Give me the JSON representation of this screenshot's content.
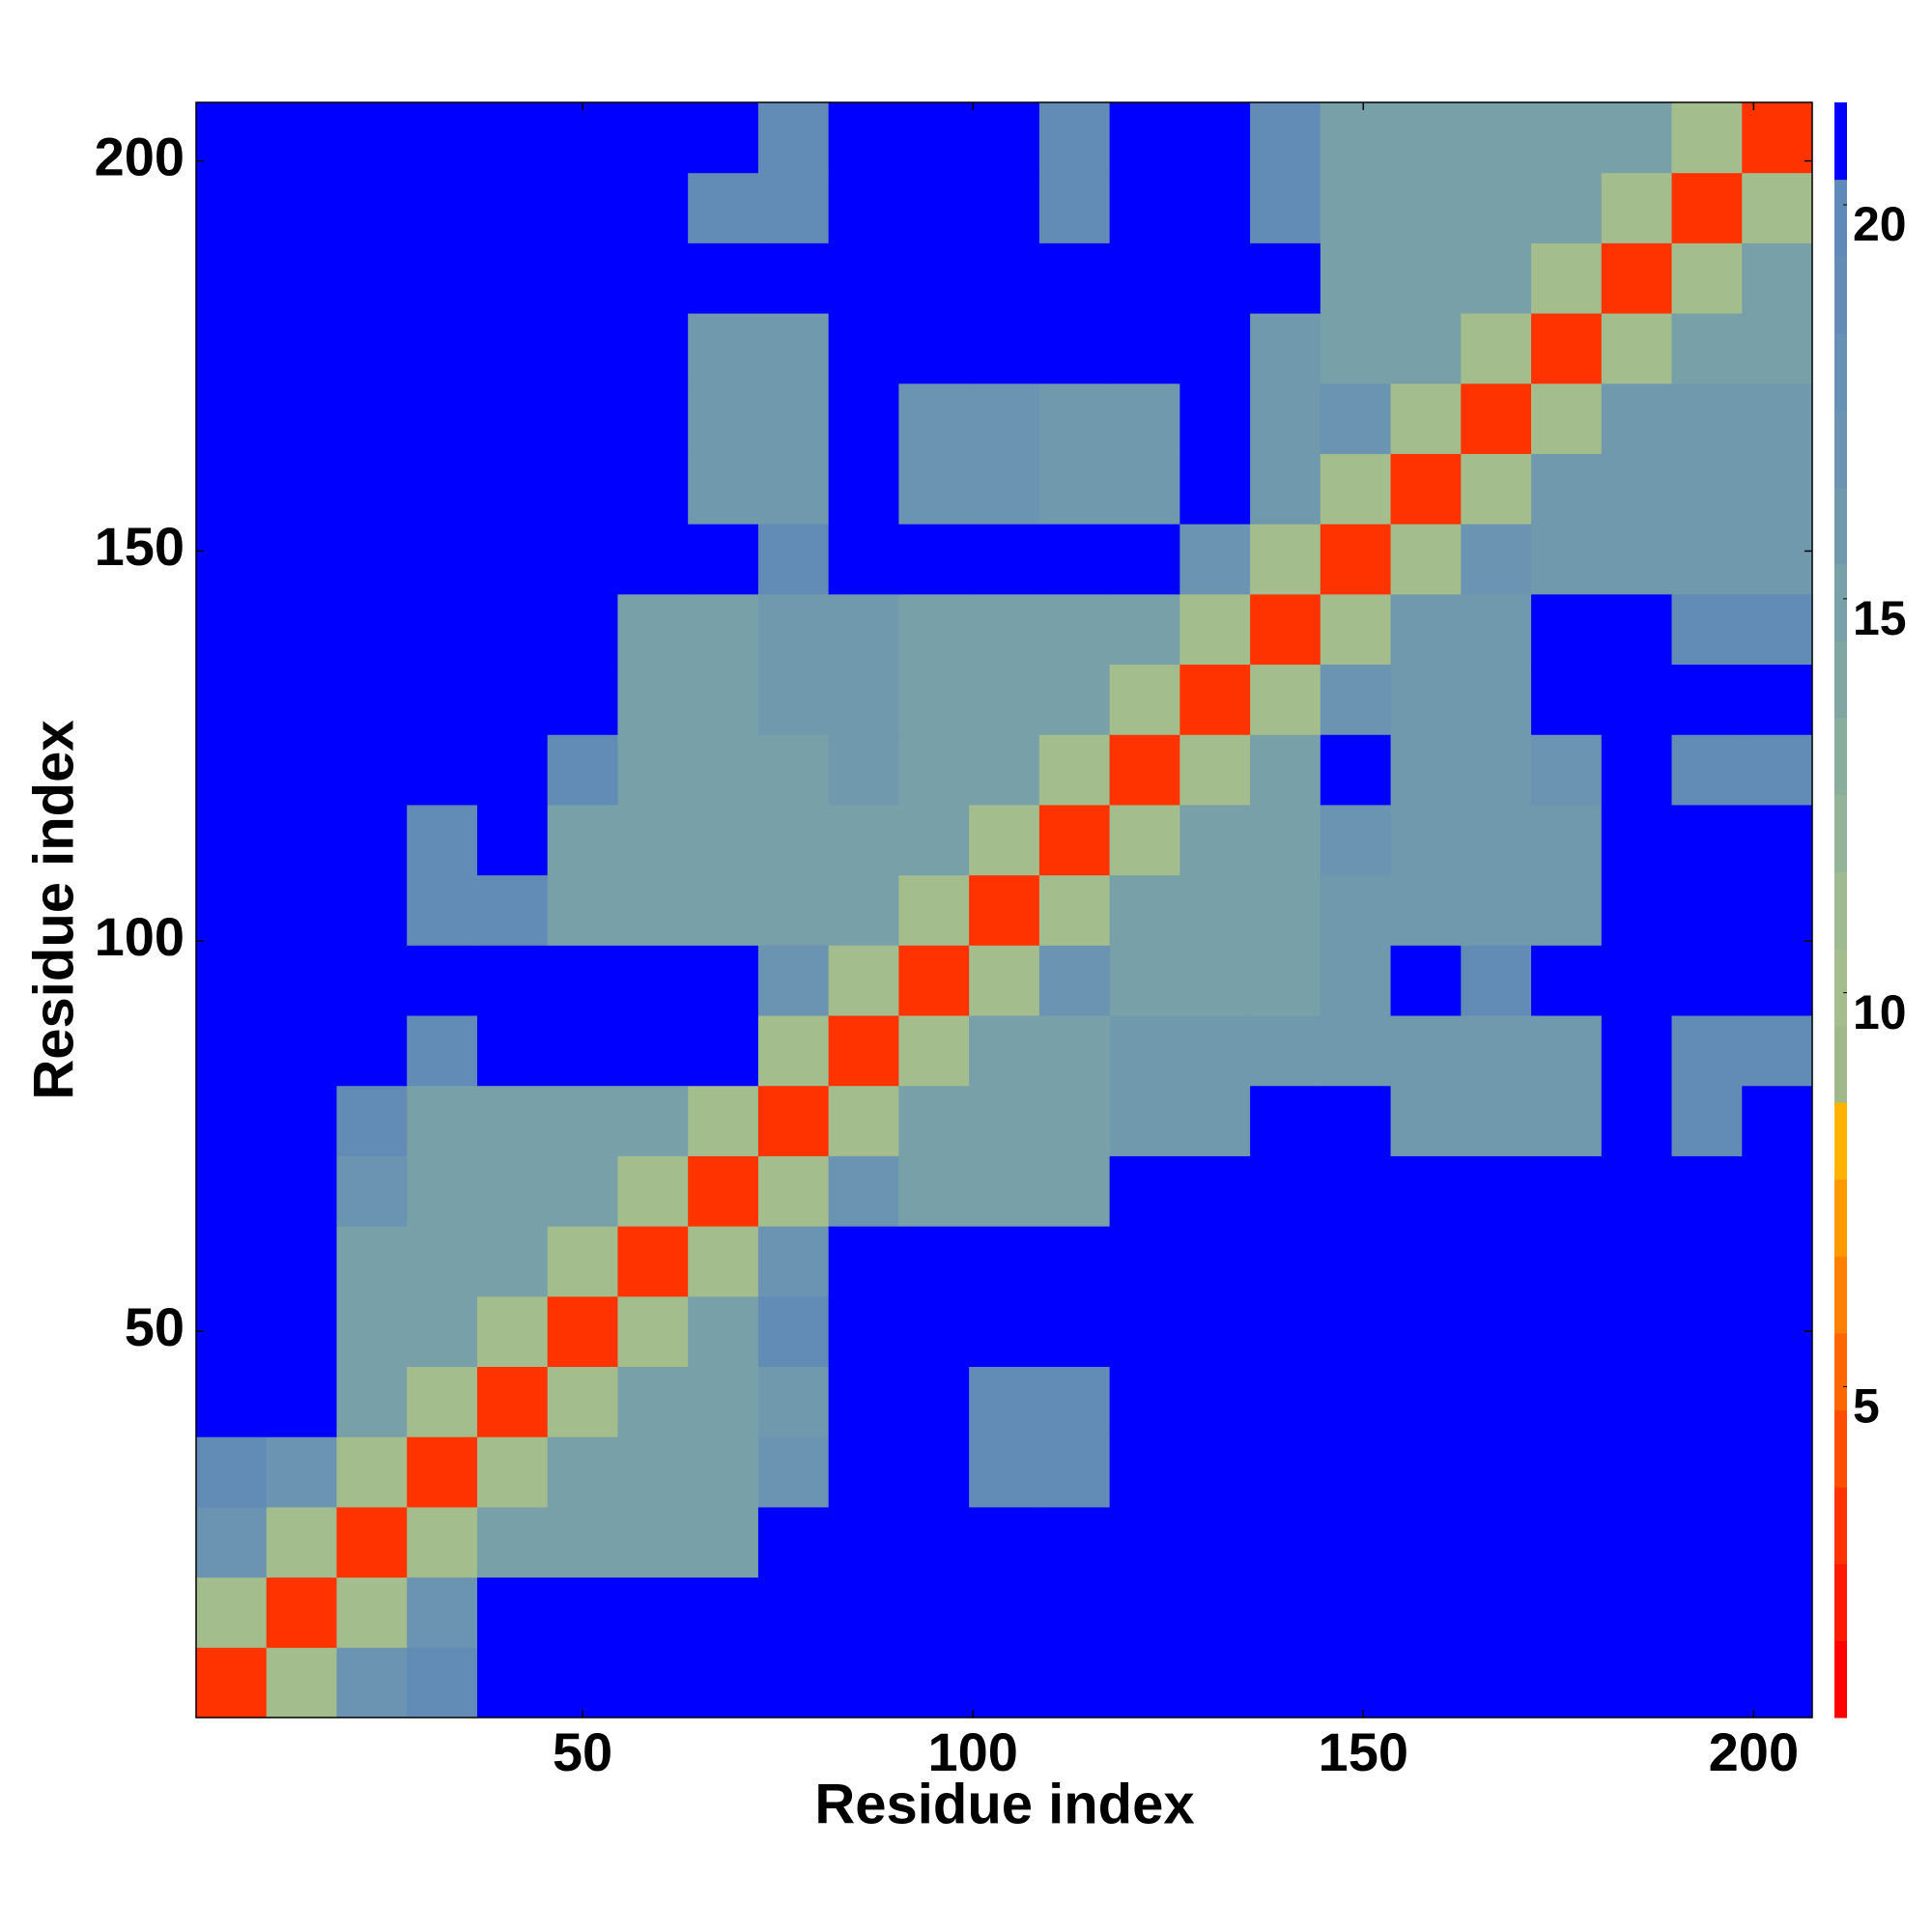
{
  "chart_data": {
    "type": "heatmap",
    "x_label": "Residue index",
    "y_label": "Residue index",
    "xlim": [
      0.5,
      207.5
    ],
    "ylim": [
      0.5,
      207.5
    ],
    "xticks": [
      50,
      100,
      150,
      200
    ],
    "yticks": [
      50,
      100,
      150,
      200
    ],
    "xbins": [
      0.5,
      9.5,
      18.5,
      27.5,
      36.5,
      45.5,
      54.5,
      63.5,
      72.5,
      81.5,
      90.5,
      99.5,
      108.5,
      117.5,
      126.5,
      135.5,
      144.5,
      153.5,
      162.5,
      171.5,
      180.5,
      189.5,
      198.5,
      207.5
    ],
    "ybins": [
      0.5,
      9.5,
      18.5,
      27.5,
      36.5,
      45.5,
      54.5,
      63.5,
      72.5,
      81.5,
      90.5,
      99.5,
      108.5,
      117.5,
      126.5,
      135.5,
      144.5,
      153.5,
      162.5,
      171.5,
      180.5,
      189.5,
      198.5,
      207.5
    ],
    "z": [
      [
        3,
        10,
        17,
        19,
        21,
        21,
        21,
        21,
        21,
        21,
        21,
        21,
        21,
        21,
        21,
        21,
        21,
        21,
        21,
        21,
        21,
        21,
        21
      ],
      [
        10,
        3,
        10,
        17,
        21,
        21,
        21,
        21,
        21,
        21,
        21,
        21,
        21,
        21,
        21,
        21,
        21,
        21,
        21,
        21,
        21,
        21,
        21
      ],
      [
        17,
        10,
        3,
        10,
        15,
        15,
        15,
        15,
        21,
        21,
        21,
        21,
        21,
        21,
        21,
        21,
        21,
        21,
        21,
        21,
        21,
        21,
        21
      ],
      [
        19,
        17,
        10,
        3,
        10,
        15,
        15,
        15,
        17,
        21,
        21,
        19,
        19,
        21,
        21,
        21,
        21,
        21,
        21,
        21,
        21,
        21,
        21
      ],
      [
        21,
        21,
        15,
        10,
        3,
        10,
        15,
        15,
        16,
        21,
        21,
        19,
        19,
        21,
        21,
        21,
        21,
        21,
        21,
        21,
        21,
        21,
        21
      ],
      [
        21,
        21,
        15,
        15,
        10,
        3,
        10,
        15,
        19,
        21,
        21,
        21,
        21,
        21,
        21,
        21,
        21,
        21,
        21,
        21,
        21,
        21,
        21
      ],
      [
        21,
        21,
        15,
        15,
        15,
        10,
        3,
        10,
        17,
        21,
        21,
        21,
        21,
        21,
        21,
        21,
        21,
        21,
        21,
        21,
        21,
        21,
        21
      ],
      [
        21,
        21,
        17,
        15,
        15,
        15,
        10,
        3,
        10,
        17,
        15,
        15,
        15,
        21,
        21,
        21,
        21,
        21,
        21,
        21,
        21,
        21,
        21
      ],
      [
        21,
        21,
        19,
        15,
        15,
        15,
        15,
        10,
        3,
        10,
        15,
        15,
        15,
        16,
        16,
        21,
        21,
        16,
        16,
        16,
        21,
        19,
        21
      ],
      [
        21,
        21,
        21,
        19,
        21,
        21,
        21,
        21,
        10,
        3,
        10,
        15,
        15,
        16,
        16,
        16,
        16,
        16,
        16,
        16,
        21,
        19,
        19
      ],
      [
        21,
        21,
        21,
        21,
        21,
        21,
        21,
        21,
        17,
        10,
        3,
        10,
        17,
        15,
        15,
        15,
        16,
        21,
        19,
        21,
        21,
        21,
        21
      ],
      [
        21,
        21,
        21,
        19,
        19,
        15,
        15,
        15,
        15,
        15,
        10,
        3,
        10,
        15,
        15,
        15,
        16,
        16,
        16,
        16,
        21,
        21,
        21
      ],
      [
        21,
        21,
        21,
        19,
        21,
        15,
        15,
        15,
        15,
        15,
        15,
        10,
        3,
        10,
        15,
        15,
        17,
        16,
        16,
        16,
        21,
        21,
        21
      ],
      [
        21,
        21,
        21,
        21,
        21,
        19,
        15,
        15,
        15,
        16,
        15,
        15,
        10,
        3,
        10,
        15,
        21,
        16,
        16,
        17,
        21,
        19,
        19
      ],
      [
        21,
        21,
        21,
        21,
        21,
        21,
        15,
        15,
        16,
        16,
        15,
        15,
        15,
        10,
        3,
        10,
        17,
        16,
        16,
        21,
        21,
        21,
        21
      ],
      [
        21,
        21,
        21,
        21,
        21,
        21,
        15,
        15,
        16,
        16,
        15,
        15,
        15,
        15,
        10,
        3,
        10,
        16,
        16,
        21,
        21,
        19,
        19
      ],
      [
        21,
        21,
        21,
        21,
        21,
        21,
        21,
        21,
        19,
        21,
        21,
        21,
        21,
        21,
        17,
        10,
        3,
        10,
        17,
        16,
        16,
        16,
        16
      ],
      [
        21,
        21,
        21,
        21,
        21,
        21,
        21,
        16,
        16,
        21,
        17,
        17,
        16,
        16,
        21,
        16,
        10,
        3,
        10,
        16,
        16,
        16,
        16
      ],
      [
        21,
        21,
        21,
        21,
        21,
        21,
        21,
        16,
        16,
        21,
        17,
        17,
        16,
        16,
        21,
        16,
        17,
        10,
        3,
        10,
        16,
        16,
        16
      ],
      [
        21,
        21,
        21,
        21,
        21,
        21,
        21,
        16,
        16,
        21,
        21,
        21,
        21,
        21,
        21,
        16,
        15,
        15,
        10,
        3,
        10,
        15,
        15
      ],
      [
        21,
        21,
        21,
        21,
        21,
        21,
        21,
        21,
        21,
        21,
        21,
        21,
        21,
        21,
        21,
        21,
        15,
        15,
        15,
        10,
        3,
        10,
        15
      ],
      [
        21,
        21,
        21,
        21,
        21,
        21,
        21,
        19,
        19,
        21,
        21,
        21,
        19,
        21,
        21,
        19,
        15,
        15,
        15,
        15,
        10,
        3,
        10
      ],
      [
        21,
        21,
        21,
        21,
        21,
        21,
        21,
        21,
        19,
        21,
        21,
        21,
        19,
        21,
        21,
        19,
        15,
        15,
        15,
        15,
        15,
        10,
        3
      ]
    ],
    "zlim": [
      0.8,
      21.3
    ],
    "zticks": [
      5,
      10,
      15,
      20
    ],
    "colors": [
      "#ff0000",
      "#ff1a00",
      "#ff3300",
      "#ff4d00",
      "#ff6600",
      "#ff8000",
      "#ff9900",
      "#ffb300",
      "#9fb98a",
      "#a3bd8c",
      "#9dba90",
      "#93b496",
      "#8aae9c",
      "#80a6a2",
      "#78a0a8",
      "#7099ad",
      "#6a94b1",
      "#6690b4",
      "#628cb6",
      "#5f89b8",
      "#0000ff"
    ]
  }
}
